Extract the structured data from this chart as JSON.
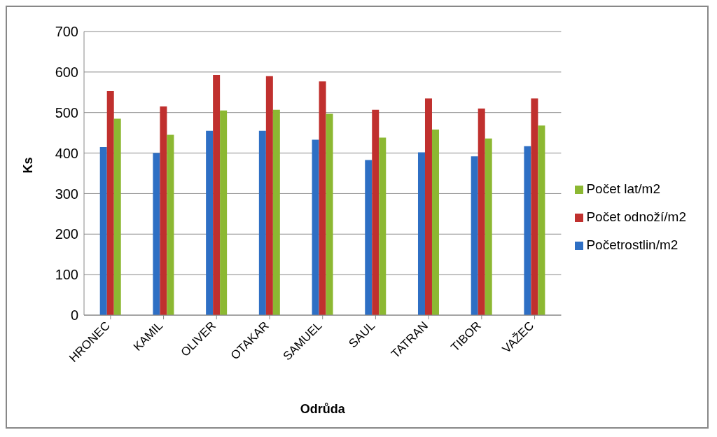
{
  "chart_data": {
    "type": "bar",
    "xlabel": "Odrůda",
    "ylabel": "Ks",
    "categories": [
      "HRONEC",
      "KAMIL",
      "OLIVER",
      "OTAKAR",
      "SAMUEL",
      "SAUL",
      "TATRAN",
      "TIBOR",
      "VAŽEC"
    ],
    "series": [
      {
        "name": "Početrostlin/m2",
        "color": "#2e6fc4",
        "values": [
          415,
          400,
          455,
          455,
          433,
          383,
          402,
          392,
          417
        ]
      },
      {
        "name": "Počet odnoží/m2",
        "color": "#c0302e",
        "values": [
          553,
          515,
          593,
          590,
          577,
          507,
          535,
          510,
          535
        ]
      },
      {
        "name": "Počet lat/m2",
        "color": "#8cb832",
        "values": [
          485,
          445,
          505,
          507,
          497,
          438,
          458,
          436,
          468
        ]
      }
    ],
    "ylim": [
      0,
      700
    ],
    "yticks": [
      0,
      100,
      200,
      300,
      400,
      500,
      600,
      700
    ],
    "grid": "y",
    "legend": "right"
  }
}
